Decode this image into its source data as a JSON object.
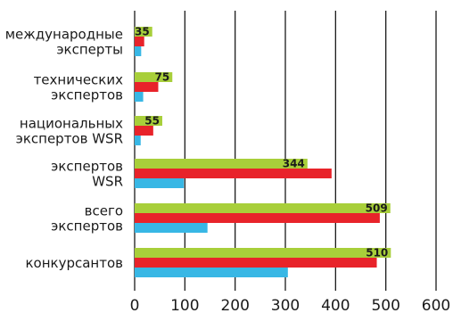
{
  "chart_data": {
    "type": "bar",
    "orientation": "horizontal",
    "categories": [
      [
        "международные",
        "эксперты"
      ],
      [
        "технических",
        "экспертов"
      ],
      [
        "национальных",
        "экспертов WSR"
      ],
      [
        "экспертов",
        "WSR"
      ],
      [
        "всего",
        "экспертов"
      ],
      [
        "конкурсантов"
      ]
    ],
    "series": [
      {
        "values": [
          35,
          75,
          55,
          344,
          509,
          510
        ],
        "color": "#a8cf3a",
        "show_labels": true
      },
      {
        "values": [
          19,
          47,
          37,
          392,
          488,
          482
        ],
        "color": "#e8232a",
        "show_labels": false
      },
      {
        "values": [
          13,
          17,
          12,
          98,
          145,
          305
        ],
        "color": "#38b7e5",
        "show_labels": false
      }
    ],
    "x_ticks": [
      "0",
      "100",
      "200",
      "300",
      "400",
      "500",
      "600"
    ],
    "xlim": [
      0,
      600
    ],
    "grid": "vertical",
    "legend": "none"
  }
}
